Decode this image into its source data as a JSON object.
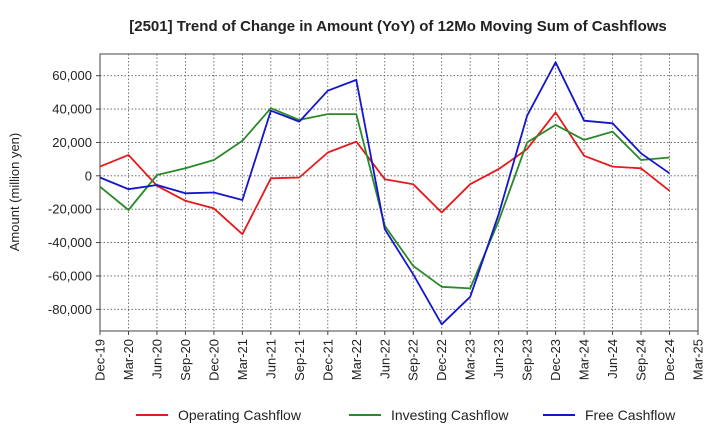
{
  "chart_data": {
    "type": "line",
    "title": "[2501]  Trend of Change in Amount (YoY) of 12Mo Moving Sum of Cashflows",
    "xlabel": "",
    "ylabel": "Amount (million yen)",
    "ylim": [
      -93000,
      73000
    ],
    "yticks": [
      -80000,
      -60000,
      -40000,
      -20000,
      0,
      20000,
      40000,
      60000
    ],
    "ytick_labels": [
      "-80,000",
      "-60,000",
      "-40,000",
      "-20,000",
      "0",
      "20,000",
      "40,000",
      "60,000"
    ],
    "tick_labels": [
      "Dec-19",
      "Mar-20",
      "Jun-20",
      "Sep-20",
      "Dec-20",
      "Mar-21",
      "Jun-21",
      "Sep-21",
      "Dec-21",
      "Mar-22",
      "Jun-22",
      "Sep-22",
      "Dec-22",
      "Mar-23",
      "Jun-23",
      "Sep-23",
      "Dec-23",
      "Mar-24",
      "Jun-24",
      "Sep-24",
      "Dec-24",
      "Mar-25"
    ],
    "categories": [
      "Dec-19",
      "Mar-20",
      "Jun-20",
      "Sep-20",
      "Dec-20",
      "Mar-21",
      "Jun-21",
      "Sep-21",
      "Dec-21",
      "Mar-22",
      "Jun-22",
      "Sep-22",
      "Dec-22",
      "Mar-23",
      "Jun-23",
      "Sep-23",
      "Dec-23",
      "Mar-24",
      "Jun-24",
      "Sep-24",
      "Dec-24"
    ],
    "grid": true,
    "legend_position": "bottom",
    "series": [
      {
        "name": "Operating Cashflow",
        "color": "#e41a1c",
        "values": [
          5500,
          12500,
          -6000,
          -15000,
          -19500,
          -35000,
          -1500,
          -1000,
          14000,
          20500,
          -2000,
          -5000,
          -22000,
          -5000,
          4000,
          16000,
          38000,
          12000,
          5500,
          4500,
          -9000
        ]
      },
      {
        "name": "Investing Cashflow",
        "color": "#2a8a2a",
        "values": [
          -6500,
          -20500,
          500,
          4500,
          9500,
          21000,
          40500,
          33500,
          37000,
          37000,
          -30000,
          -54000,
          -66500,
          -67500,
          -27000,
          20000,
          30500,
          21500,
          26500,
          9500,
          11000
        ]
      },
      {
        "name": "Free Cashflow",
        "color": "#1515cc",
        "values": [
          -1000,
          -8000,
          -5500,
          -10500,
          -10000,
          -14500,
          39000,
          32500,
          51000,
          57500,
          -32000,
          -59000,
          -89000,
          -72500,
          -23000,
          36000,
          68000,
          33000,
          31500,
          13500,
          1500
        ]
      }
    ]
  }
}
